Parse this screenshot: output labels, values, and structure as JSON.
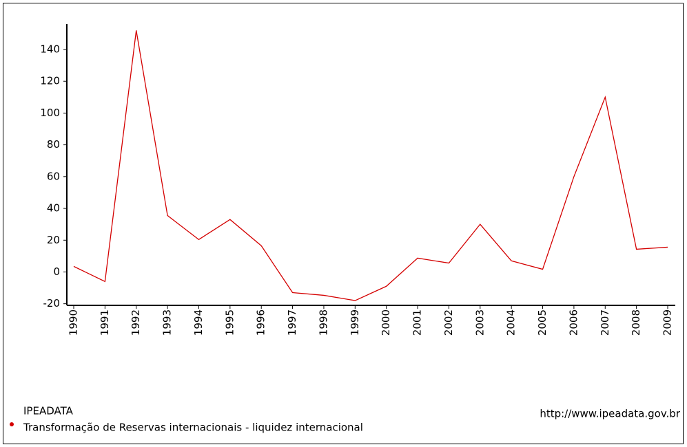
{
  "chart_data": {
    "type": "line",
    "source": "IPEADATA",
    "url": "http://www.ipeadata.gov.br",
    "categories": [
      "1990",
      "1991",
      "1992",
      "1993",
      "1994",
      "1995",
      "1996",
      "1997",
      "1998",
      "1999",
      "2000",
      "2001",
      "2002",
      "2003",
      "2004",
      "2005",
      "2006",
      "2007",
      "2008",
      "2009"
    ],
    "series": [
      {
        "name": "Transformação de Reservas internacionais - liquidez internacional",
        "color": "#d40000",
        "values": [
          3.5,
          -6,
          152,
          35.5,
          20.4,
          33,
          16.5,
          -13,
          -14.7,
          -18,
          -9,
          8.7,
          5.6,
          30,
          7,
          1.7,
          60,
          110,
          14.3,
          15.6
        ]
      }
    ],
    "ylim": [
      -21,
      156
    ],
    "yticks": [
      -20,
      0,
      20,
      40,
      60,
      80,
      100,
      120,
      140
    ],
    "grid": false
  }
}
